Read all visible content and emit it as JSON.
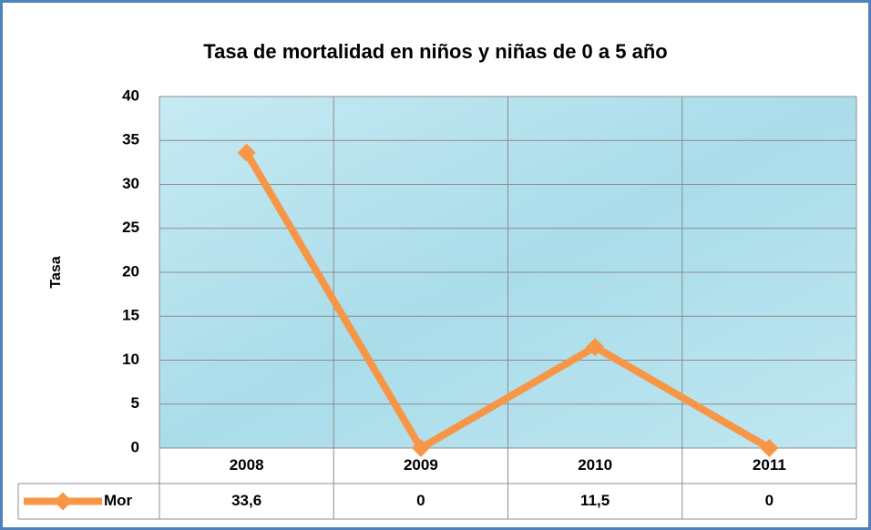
{
  "chart_data": {
    "type": "line",
    "title": "Tasa de mortalidad en niños y niñas de 0 a 5 año",
    "y_label": "Tasa",
    "categories": [
      "2008",
      "2009",
      "2010",
      "2011"
    ],
    "series": [
      {
        "name": "Mor",
        "color": "#f79646",
        "values": [
          33.6,
          0,
          11.5,
          0
        ],
        "value_labels": [
          "33,6",
          "0",
          "11,5",
          "0"
        ]
      }
    ],
    "ylim": [
      0,
      40
    ],
    "yticks": [
      0,
      5,
      10,
      15,
      20,
      25,
      30,
      35,
      40
    ],
    "grid": true,
    "data_table": true
  }
}
